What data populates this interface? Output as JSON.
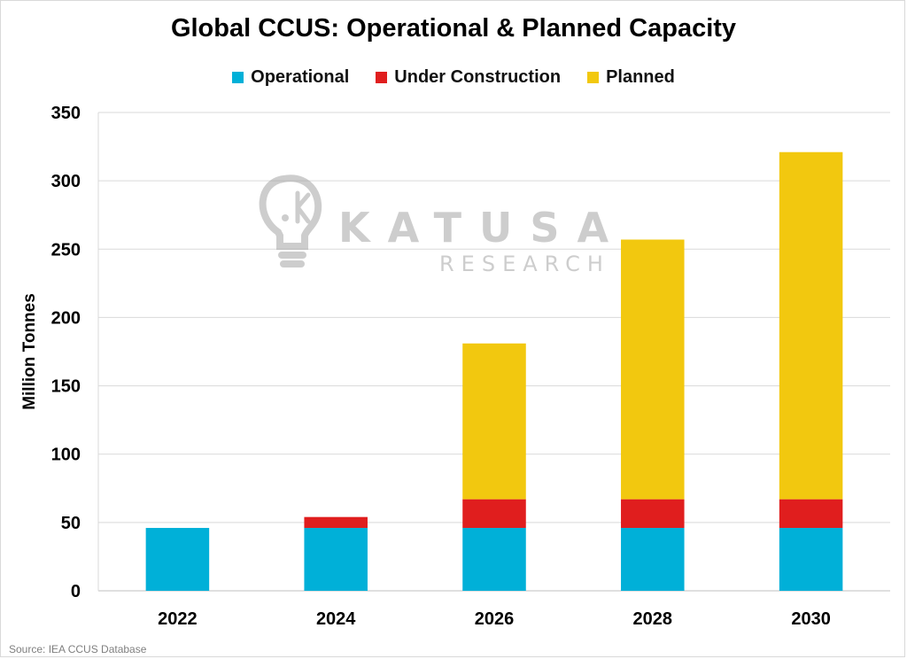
{
  "chart_data": {
    "type": "bar",
    "stacked": true,
    "title": "Global CCUS: Operational & Planned Capacity",
    "ylabel": "Million Tonnes",
    "xlabel": "",
    "categories": [
      "2022",
      "2024",
      "2026",
      "2028",
      "2030"
    ],
    "series": [
      {
        "name": "Operational",
        "color": "#00b0d8",
        "values": [
          46,
          46,
          46,
          46,
          46
        ]
      },
      {
        "name": "Under Construction",
        "color": "#e01e1e",
        "values": [
          0,
          8,
          21,
          21,
          21
        ]
      },
      {
        "name": "Planned",
        "color": "#f2c80f",
        "values": [
          0,
          0,
          114,
          190,
          254
        ]
      }
    ],
    "ylim": [
      0,
      350
    ],
    "yticks": [
      0,
      50,
      100,
      150,
      200,
      250,
      300,
      350
    ],
    "grid": true,
    "legend_position": "top"
  },
  "watermark": {
    "brand": "KATUSA",
    "sub": "RESEARCH"
  },
  "source": "Source: IEA CCUS Database"
}
